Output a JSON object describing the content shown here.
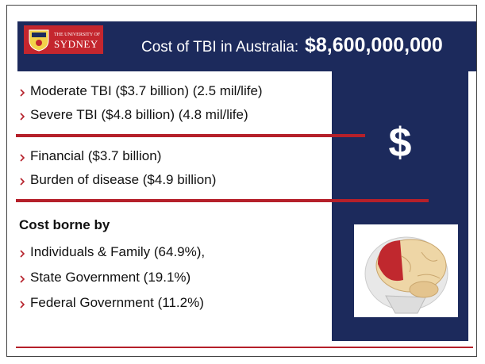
{
  "header": {
    "logo": {
      "line1": "THE UNIVERSITY OF",
      "line2": "SYDNEY"
    },
    "title": "Cost of TBI in Australia:",
    "amount": "$8,600,000,000"
  },
  "groups": [
    {
      "items": [
        "Moderate TBI ($3.7 billion) (2.5 mil/life)",
        "Severe TBI ($4.8 billion) (4.8 mil/life)"
      ]
    },
    {
      "items": [
        "Financial ($3.7 billion)",
        "Burden of disease ($4.9 billion)"
      ]
    },
    {
      "heading": "Cost borne by",
      "items": [
        "Individuals & Family (64.9%),",
        "State Government (19.1%)",
        "Federal Government (11.2%)"
      ]
    }
  ],
  "panel": {
    "symbol": "$"
  }
}
